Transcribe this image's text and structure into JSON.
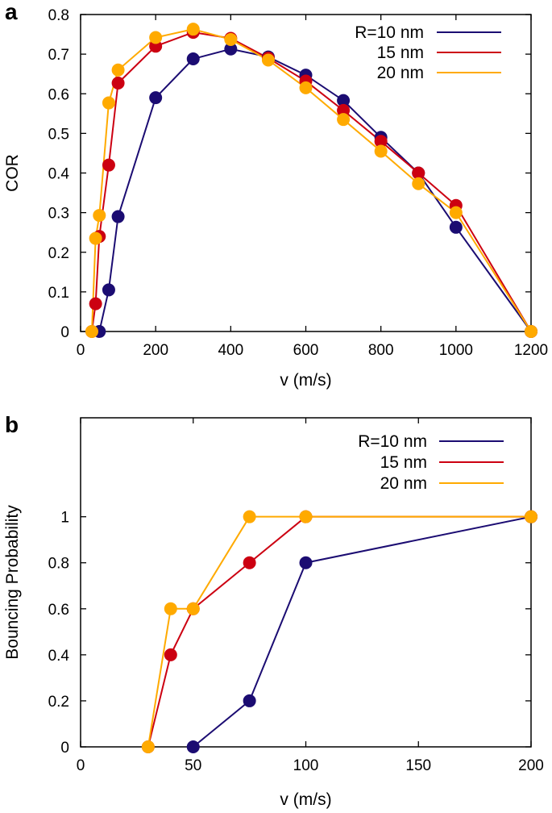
{
  "chart_data": [
    {
      "type": "line",
      "panel_label": "a",
      "xlabel": "v (m/s)",
      "ylabel": "COR",
      "xlim": [
        0,
        1200
      ],
      "ylim": [
        0,
        0.8
      ],
      "xticks": [
        0,
        200,
        400,
        600,
        800,
        1000,
        1200
      ],
      "yticks": [
        0,
        0.1,
        0.2,
        0.3,
        0.4,
        0.5,
        0.6,
        0.7,
        0.8
      ],
      "grid": false,
      "legend_position": "top-right",
      "series": [
        {
          "name": "R=10 nm",
          "color": "#1b0c72",
          "x": [
            50,
            75,
            100,
            200,
            300,
            400,
            500,
            600,
            700,
            800,
            900,
            1000,
            1200
          ],
          "y": [
            0,
            0.105,
            0.29,
            0.59,
            0.688,
            0.713,
            0.693,
            0.647,
            0.583,
            0.49,
            0.4,
            0.263,
            0
          ]
        },
        {
          "name": "15 nm",
          "color": "#cc0011",
          "x": [
            30,
            40,
            50,
            75,
            100,
            200,
            300,
            400,
            500,
            600,
            700,
            800,
            900,
            1000,
            1200
          ],
          "y": [
            0,
            0.07,
            0.24,
            0.42,
            0.627,
            0.72,
            0.755,
            0.74,
            0.69,
            0.632,
            0.558,
            0.48,
            0.4,
            0.318,
            0
          ]
        },
        {
          "name": "20 nm",
          "color": "#ffaa00",
          "x": [
            30,
            40,
            50,
            75,
            100,
            200,
            300,
            400,
            500,
            600,
            700,
            800,
            900,
            1000,
            1200
          ],
          "y": [
            0,
            0.235,
            0.293,
            0.577,
            0.66,
            0.742,
            0.763,
            0.737,
            0.685,
            0.615,
            0.535,
            0.455,
            0.373,
            0.3,
            0
          ]
        }
      ]
    },
    {
      "type": "line",
      "panel_label": "b",
      "xlabel": "v (m/s)",
      "ylabel": "Bouncing Probability",
      "xlim": [
        0,
        200
      ],
      "ylim": [
        0,
        1.43
      ],
      "xticks": [
        0,
        50,
        100,
        150,
        200
      ],
      "yticks": [
        0,
        0.2,
        0.4,
        0.6,
        0.8,
        1
      ],
      "grid": false,
      "legend_position": "top-right",
      "series": [
        {
          "name": "R=10 nm",
          "color": "#1b0c72",
          "x": [
            50,
            75,
            100,
            200
          ],
          "y": [
            0,
            0.2,
            0.8,
            1
          ]
        },
        {
          "name": "15 nm",
          "color": "#cc0011",
          "x": [
            30,
            40,
            50,
            75,
            100,
            200
          ],
          "y": [
            0,
            0.4,
            0.6,
            0.8,
            1,
            1
          ]
        },
        {
          "name": "20 nm",
          "color": "#ffaa00",
          "x": [
            30,
            40,
            50,
            75,
            100,
            200
          ],
          "y": [
            0,
            0.6,
            0.6,
            1,
            1,
            1
          ]
        }
      ]
    }
  ]
}
